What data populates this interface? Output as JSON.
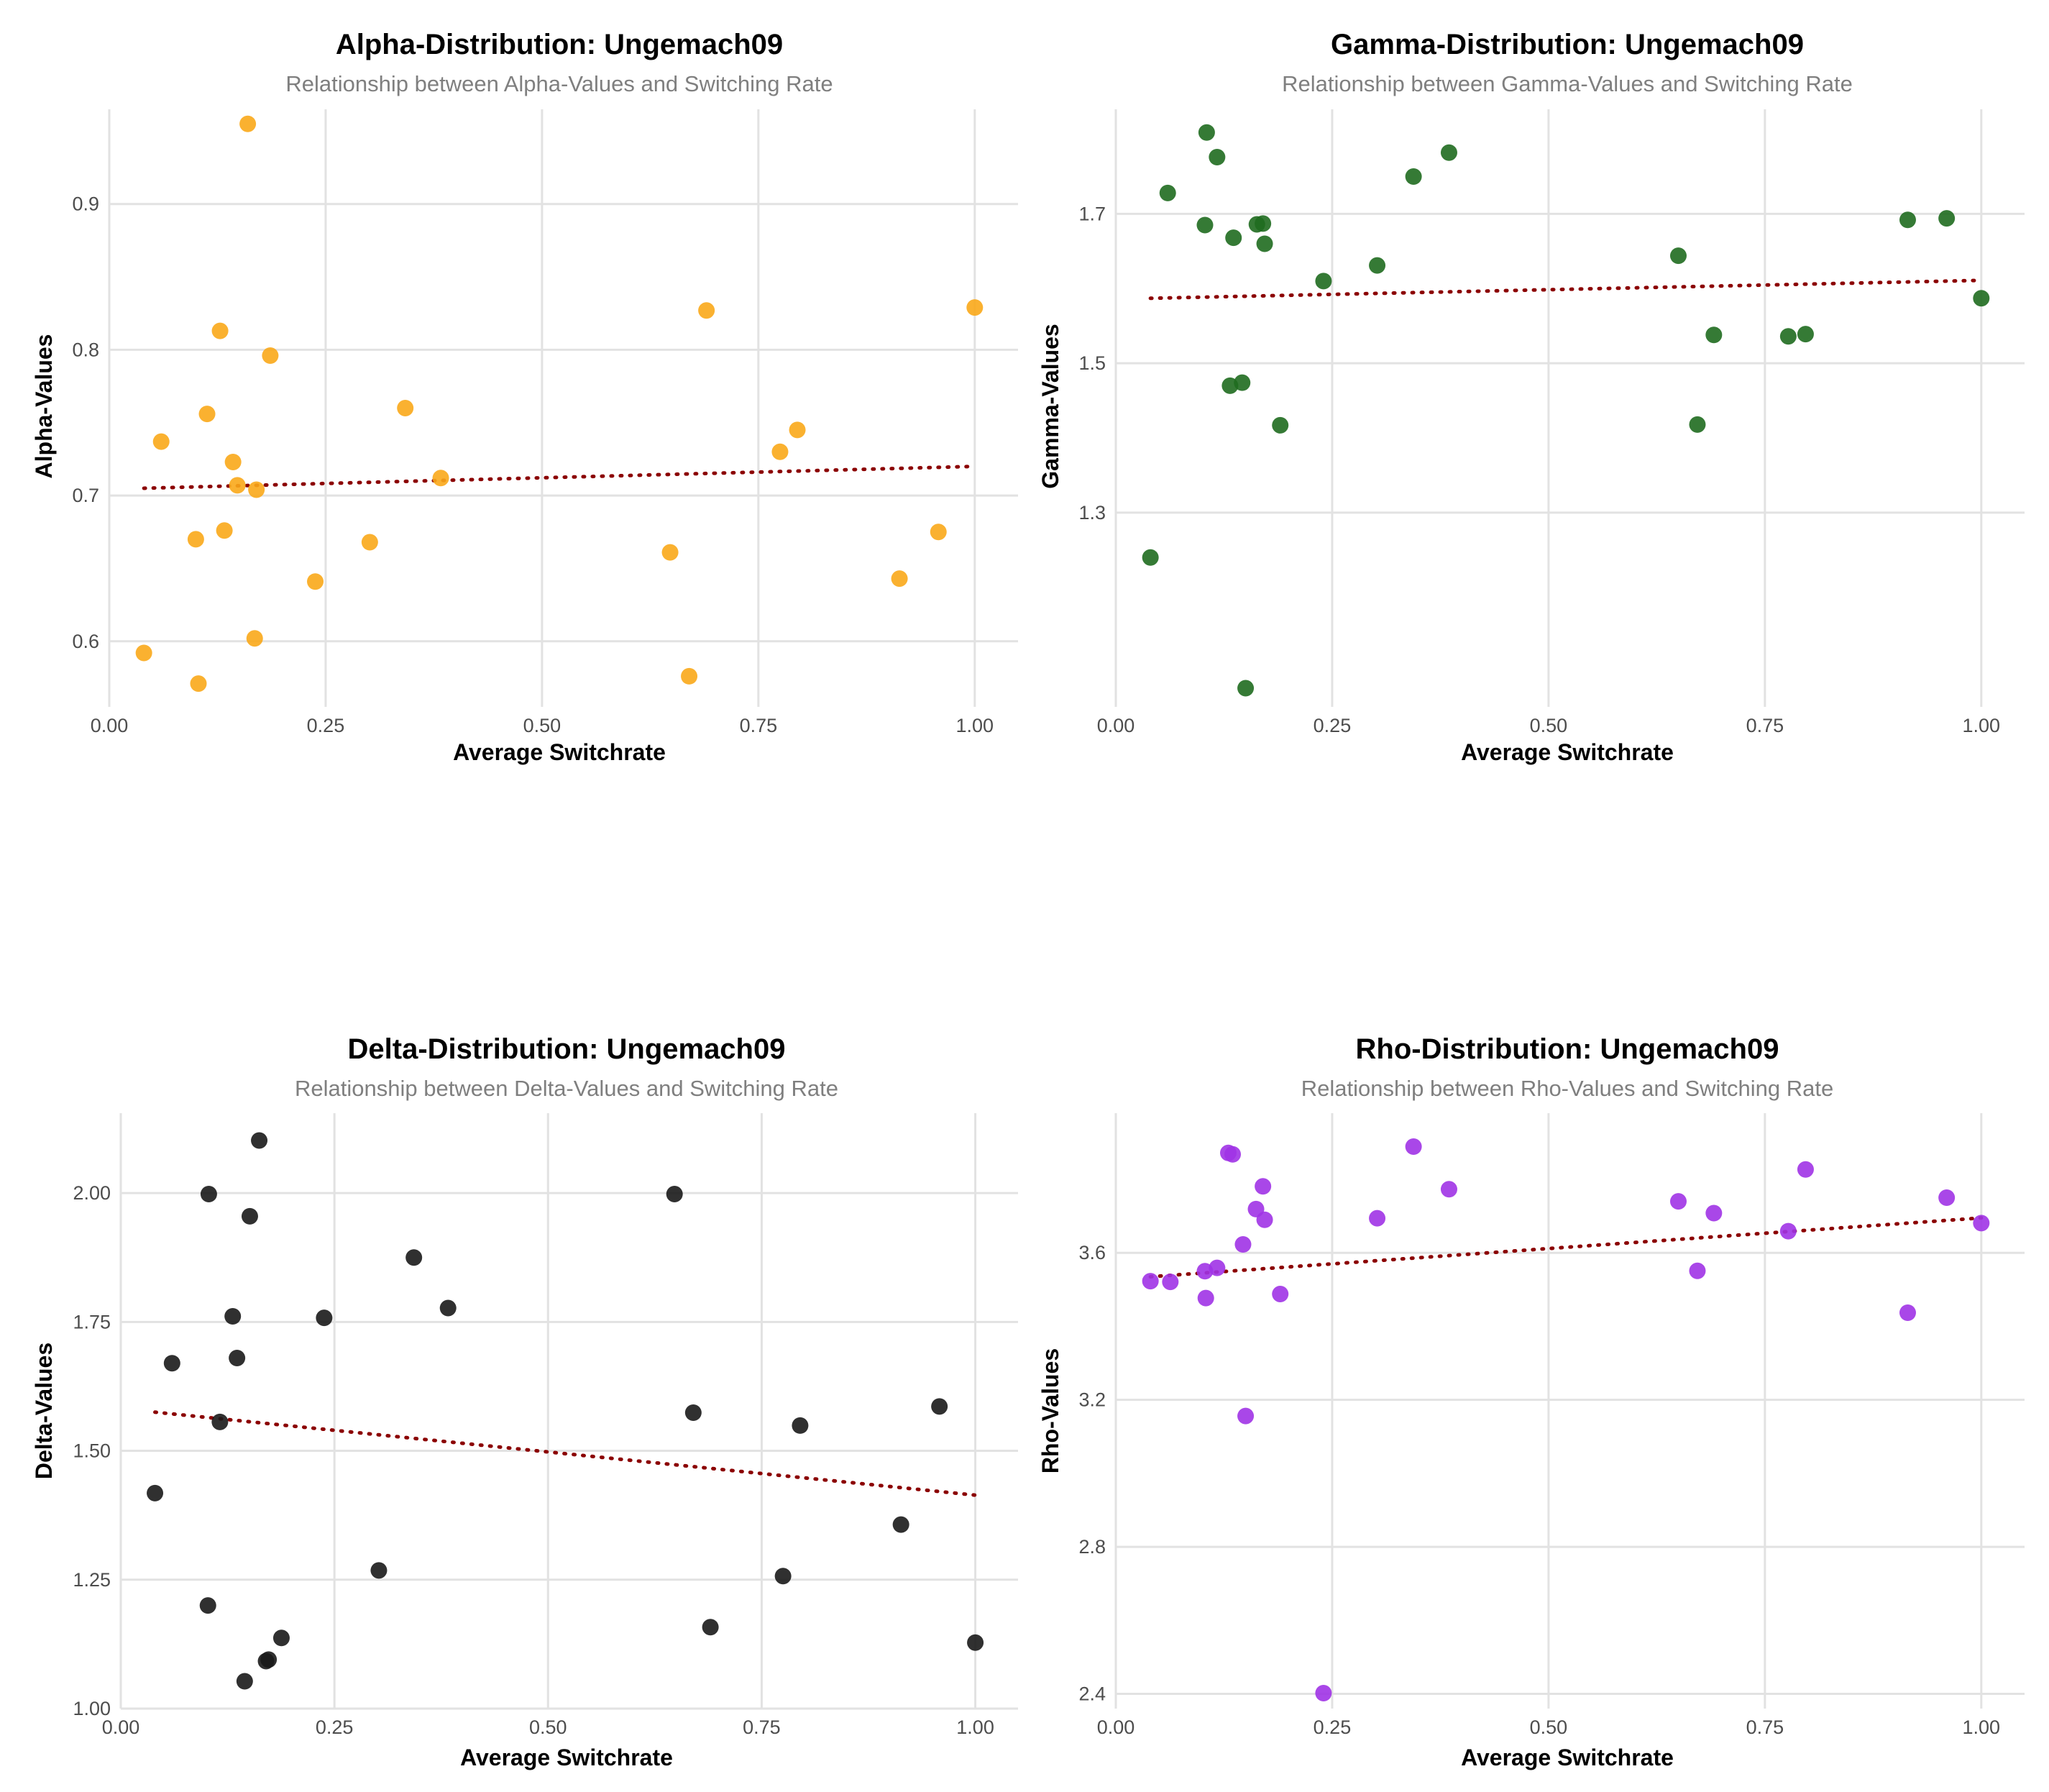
{
  "chart_data": [
    {
      "type": "scatter",
      "title": "Alpha-Distribution: Ungemach09",
      "subtitle": "Relationship between Alpha-Values and Switching Rate",
      "xlabel": "Average Switchrate",
      "ylabel": "Alpha-Values",
      "color": "#f9a81a",
      "xlim": [
        0,
        1.05
      ],
      "ylim": [
        0.555,
        0.965
      ],
      "xticks": [
        0,
        0.25,
        0.5,
        0.75,
        1.0
      ],
      "xtick_labels": [
        "0.00",
        "0.25",
        "0.50",
        "0.75",
        "1.00"
      ],
      "yticks": [
        0.6,
        0.7,
        0.8,
        0.9
      ],
      "ytick_labels": [
        "0.6",
        "0.7",
        "0.8",
        "0.9"
      ],
      "grid": true,
      "trendline": {
        "x": [
          0.04,
          1.0
        ],
        "y": [
          0.705,
          0.72
        ]
      },
      "x": [
        0.04,
        0.06,
        0.1,
        0.103,
        0.113,
        0.128,
        0.133,
        0.143,
        0.148,
        0.16,
        0.168,
        0.17,
        0.186,
        0.238,
        0.301,
        0.342,
        0.383,
        0.648,
        0.67,
        0.69,
        0.775,
        0.795,
        0.913,
        0.958,
        1.0
      ],
      "y": [
        0.592,
        0.737,
        0.67,
        0.571,
        0.756,
        0.813,
        0.676,
        0.723,
        0.707,
        0.955,
        0.602,
        0.704,
        0.796,
        0.641,
        0.668,
        0.76,
        0.712,
        0.661,
        0.576,
        0.827,
        0.73,
        0.745,
        0.643,
        0.675,
        0.829
      ]
    },
    {
      "type": "scatter",
      "title": "Gamma-Distribution: Ungemach09",
      "subtitle": "Relationship between Gamma-Values and Switching Rate",
      "xlabel": "Average Switchrate",
      "ylabel": "Gamma-Values",
      "color": "#1f6b1f",
      "xlim": [
        0,
        1.05
      ],
      "ylim": [
        1.04,
        1.84
      ],
      "xticks": [
        0,
        0.25,
        0.5,
        0.75,
        1.0
      ],
      "xtick_labels": [
        "0.00",
        "0.25",
        "0.50",
        "0.75",
        "1.00"
      ],
      "yticks": [
        1.3,
        1.5,
        1.7
      ],
      "ytick_labels": [
        "1.3",
        "1.5",
        "1.7"
      ],
      "grid": true,
      "trendline": {
        "x": [
          0.04,
          1.0
        ],
        "y": [
          1.587,
          1.611
        ]
      },
      "x": [
        0.04,
        0.06,
        0.103,
        0.105,
        0.117,
        0.132,
        0.136,
        0.146,
        0.15,
        0.163,
        0.17,
        0.172,
        0.19,
        0.24,
        0.302,
        0.344,
        0.385,
        0.65,
        0.672,
        0.691,
        0.777,
        0.797,
        0.915,
        0.96,
        1.0
      ],
      "y": [
        1.24,
        1.728,
        1.685,
        1.809,
        1.776,
        1.47,
        1.668,
        1.474,
        1.065,
        1.686,
        1.687,
        1.66,
        1.417,
        1.61,
        1.631,
        1.75,
        1.782,
        1.644,
        1.418,
        1.538,
        1.536,
        1.539,
        1.692,
        1.694,
        1.587
      ]
    },
    {
      "type": "scatter",
      "title": "Delta-Distribution: Ungemach09",
      "subtitle": "Relationship between Delta-Values and Switching Rate",
      "xlabel": "Average Switchrate",
      "ylabel": "Delta-Values",
      "color": "#1a1a1a",
      "xlim": [
        0,
        1.05
      ],
      "ylim": [
        1.0,
        2.155
      ],
      "xticks": [
        0,
        0.25,
        0.5,
        0.75,
        1.0
      ],
      "xtick_labels": [
        "0.00",
        "0.25",
        "0.50",
        "0.75",
        "1.00"
      ],
      "yticks": [
        1.0,
        1.25,
        1.5,
        1.75,
        2.0
      ],
      "ytick_labels": [
        "1.00",
        "1.25",
        "1.50",
        "1.75",
        "2.00"
      ],
      "grid": true,
      "trendline": {
        "x": [
          0.04,
          1.0
        ],
        "y": [
          1.575,
          1.414
        ]
      },
      "x": [
        0.04,
        0.06,
        0.102,
        0.103,
        0.116,
        0.131,
        0.136,
        0.145,
        0.151,
        0.162,
        0.17,
        0.173,
        0.188,
        0.238,
        0.302,
        0.343,
        0.383,
        0.648,
        0.67,
        0.69,
        0.775,
        0.795,
        0.913,
        0.958,
        1.0
      ],
      "y": [
        1.418,
        1.67,
        1.2,
        1.998,
        1.556,
        1.761,
        1.68,
        1.053,
        1.955,
        2.102,
        1.092,
        1.095,
        1.137,
        1.758,
        1.268,
        1.875,
        1.777,
        1.998,
        1.574,
        1.158,
        1.257,
        1.549,
        1.357,
        1.586,
        1.128
      ]
    },
    {
      "type": "scatter",
      "title": "Rho-Distribution: Ungemach09",
      "subtitle": "Relationship between Rho-Values and Switching Rate",
      "xlabel": "Average Switchrate",
      "ylabel": "Rho-Values",
      "color": "#a033e6",
      "xlim": [
        0,
        1.05
      ],
      "ylim": [
        2.36,
        3.98
      ],
      "xticks": [
        0,
        0.25,
        0.5,
        0.75,
        1.0
      ],
      "xtick_labels": [
        "0.00",
        "0.25",
        "0.50",
        "0.75",
        "1.00"
      ],
      "yticks": [
        2.4,
        2.8,
        3.2,
        3.6
      ],
      "ytick_labels": [
        "2.4",
        "2.8",
        "3.2",
        "3.6"
      ],
      "grid": true,
      "trendline": {
        "x": [
          0.04,
          1.0
        ],
        "y": [
          3.535,
          3.695
        ]
      },
      "x": [
        0.04,
        0.063,
        0.103,
        0.104,
        0.117,
        0.13,
        0.135,
        0.147,
        0.15,
        0.162,
        0.17,
        0.172,
        0.19,
        0.24,
        0.302,
        0.344,
        0.385,
        0.65,
        0.672,
        0.691,
        0.777,
        0.797,
        0.915,
        0.96,
        1.0
      ],
      "y": [
        3.523,
        3.521,
        3.55,
        3.477,
        3.559,
        3.872,
        3.868,
        3.623,
        3.156,
        3.719,
        3.781,
        3.69,
        3.488,
        2.402,
        3.694,
        3.889,
        3.773,
        3.74,
        3.551,
        3.708,
        3.659,
        3.827,
        3.437,
        3.75,
        3.681
      ]
    }
  ]
}
